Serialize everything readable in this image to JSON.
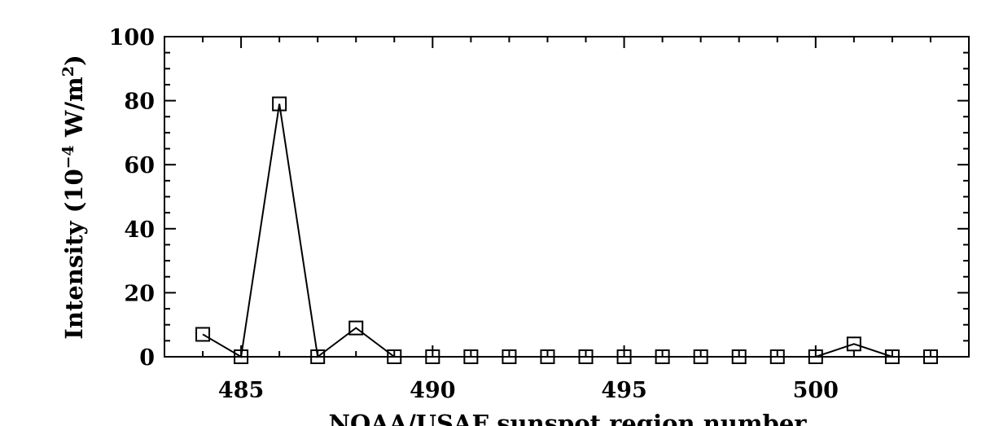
{
  "chart_data": {
    "type": "line",
    "title": "",
    "xlabel": "NOAA/USAF sunspot region number",
    "ylabel_main": "Intensity (10",
    "ylabel_exp": "−4",
    "ylabel_mid": " W/m",
    "ylabel_exp2": "2",
    "ylabel_end": ")",
    "xlim": [
      483,
      504
    ],
    "ylim": [
      0,
      100
    ],
    "x_ticks": [
      485,
      490,
      495,
      500
    ],
    "x_tick_labels": [
      "485",
      "490",
      "495",
      "500"
    ],
    "y_ticks": [
      0,
      20,
      40,
      60,
      80,
      100
    ],
    "y_tick_labels": [
      "0",
      "20",
      "40",
      "60",
      "80",
      "100"
    ],
    "grid": false,
    "marker": "square",
    "series": [
      {
        "x": [
          484,
          485,
          486,
          487,
          488,
          489,
          490,
          491,
          492,
          493,
          494,
          495,
          496,
          497,
          498,
          499,
          500,
          501,
          502,
          503
        ],
        "y": [
          7,
          0,
          79,
          0,
          9,
          0,
          0,
          0,
          0,
          0,
          0,
          0,
          0,
          0,
          0,
          0,
          0,
          4,
          0,
          0
        ]
      }
    ]
  }
}
